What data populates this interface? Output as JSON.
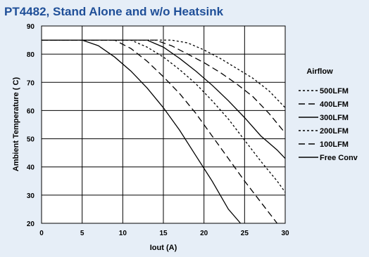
{
  "chart_data": {
    "type": "line",
    "title": "PT4482, Stand Alone and w/o Heatsink",
    "xlabel": "Iout  (A)",
    "ylabel": "Ambient Temperature ( C)",
    "xlim": [
      0,
      30
    ],
    "ylim": [
      20,
      90
    ],
    "xticks": [
      "0",
      "5",
      "10",
      "15",
      "20",
      "25",
      "30"
    ],
    "yticks": [
      "20",
      "30",
      "40",
      "50",
      "60",
      "70",
      "80",
      "90"
    ],
    "grid": true,
    "legend_title": "Airflow",
    "legend_position": "right",
    "series": [
      {
        "name": "500LFM",
        "dash": "dot",
        "color": "#000000",
        "x": [
          0,
          16,
          18,
          20,
          22,
          24,
          26,
          28,
          30
        ],
        "y": [
          85,
          85,
          84,
          81.5,
          78.5,
          75,
          71.5,
          67,
          61
        ]
      },
      {
        "name": "400LFM",
        "dash": "dash",
        "color": "#000000",
        "x": [
          0,
          14,
          16,
          18,
          20,
          22,
          24,
          26,
          28,
          30
        ],
        "y": [
          85,
          85,
          83,
          80,
          77,
          73.5,
          69.5,
          65,
          59,
          52
        ]
      },
      {
        "name": "300LFM",
        "dash": "solid",
        "color": "#000000",
        "x": [
          0,
          13,
          15,
          17,
          19,
          21,
          23,
          25,
          27,
          29,
          30
        ],
        "y": [
          85,
          85,
          82.5,
          78.5,
          74,
          69,
          63.5,
          57.5,
          51,
          46,
          43
        ]
      },
      {
        "name": "200LFM",
        "dash": "dot",
        "color": "#000000",
        "x": [
          0,
          11,
          13,
          15,
          17,
          19,
          21,
          23,
          25,
          27,
          29,
          30
        ],
        "y": [
          85,
          85,
          82.5,
          79,
          74.5,
          69.5,
          63.5,
          57,
          49.5,
          42,
          35,
          31
        ]
      },
      {
        "name": "100LFM",
        "dash": "dash",
        "color": "#000000",
        "x": [
          0,
          9,
          11,
          13,
          15,
          17,
          19,
          21,
          23,
          25,
          27,
          29
        ],
        "y": [
          85,
          85,
          82,
          77.5,
          72,
          66,
          59,
          51,
          43,
          35,
          27.5,
          20
        ]
      },
      {
        "name": "Free Conv",
        "dash": "solid",
        "color": "#000000",
        "x": [
          0,
          5,
          7,
          9,
          11,
          13,
          15,
          17,
          19,
          21,
          23,
          24.5
        ],
        "y": [
          85,
          85,
          83,
          79,
          74,
          68,
          61,
          53,
          44,
          35,
          25,
          20
        ]
      }
    ]
  }
}
